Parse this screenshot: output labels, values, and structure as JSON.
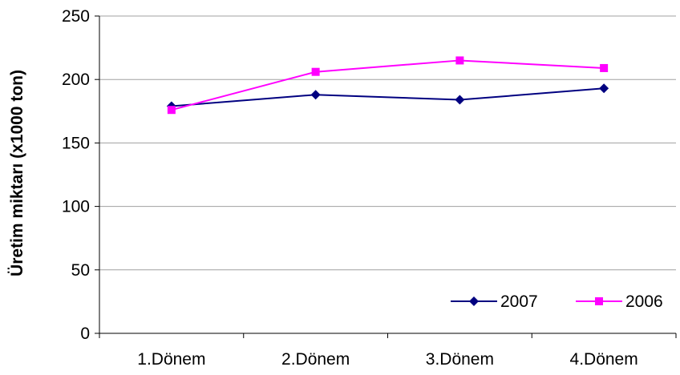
{
  "chart_data": {
    "type": "line",
    "title": "",
    "xlabel": "",
    "ylabel": "Üretim miktarı (x1000 ton)",
    "categories": [
      "1.Dönem",
      "2.Dönem",
      "3.Dönem",
      "4.Dönem"
    ],
    "ylim": [
      0,
      250
    ],
    "yticks": [
      "0",
      "50",
      "100",
      "150",
      "200",
      "250"
    ],
    "grid": true,
    "legend_position": "bottom-right",
    "series": [
      {
        "name": "2007",
        "values": [
          179,
          188,
          184,
          193
        ],
        "color": "#000080",
        "marker": "diamond"
      },
      {
        "name": "2006",
        "values": [
          176,
          206,
          215,
          209
        ],
        "color": "#FF00FF",
        "marker": "square"
      }
    ]
  }
}
